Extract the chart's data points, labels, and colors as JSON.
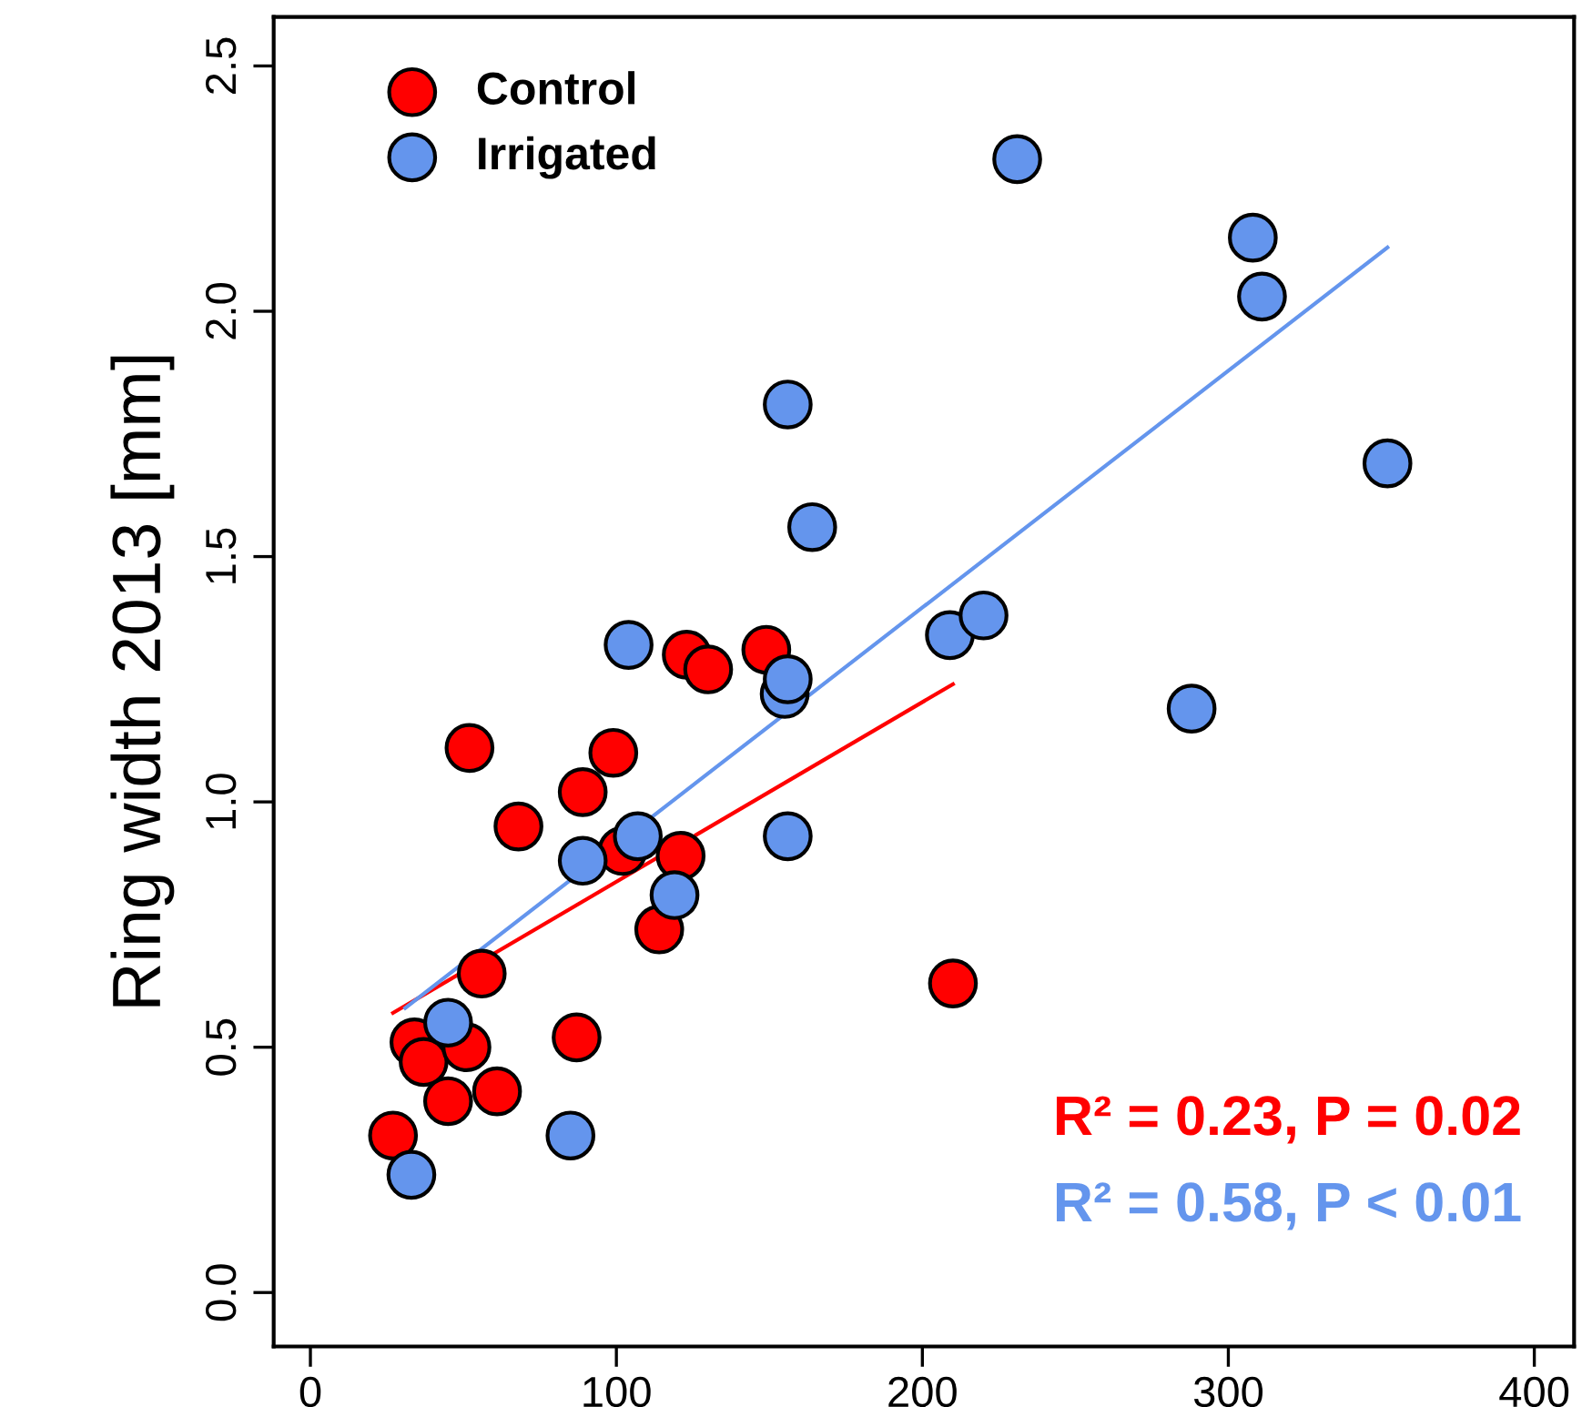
{
  "chart_data": {
    "type": "scatter",
    "ylabel": "Ring width 2013 [mm]",
    "xlim": [
      -12,
      413
    ],
    "ylim": [
      -0.11,
      2.6
    ],
    "xticks": [
      0,
      100,
      200,
      300,
      400
    ],
    "yticks": [
      {
        "value": 0,
        "label": "0.0"
      },
      0.5,
      {
        "value": 1,
        "label": "1.0"
      },
      1.5,
      {
        "value": 2,
        "label": "2.0"
      },
      2.5
    ],
    "grid": false,
    "legend": "top left",
    "series": [
      {
        "name": "Control",
        "color": "#ff0000",
        "marker": "circle",
        "x": [
          27,
          34,
          37,
          45,
          51,
          52,
          56,
          61,
          68,
          87,
          89,
          99,
          102,
          114,
          121,
          123,
          130,
          149,
          210
        ],
        "values": [
          0.32,
          0.51,
          0.47,
          0.39,
          0.5,
          1.11,
          0.65,
          0.41,
          0.95,
          0.52,
          1.02,
          1.1,
          0.9,
          0.74,
          0.89,
          1.3,
          1.27,
          1.31,
          0.63
        ]
      },
      {
        "name": "Irrigated",
        "color": "#6495ed",
        "marker": "circle",
        "x": [
          33,
          45,
          85,
          89,
          104,
          107,
          119,
          155,
          156,
          156,
          156,
          164,
          209,
          220,
          231,
          288,
          308,
          311,
          352
        ],
        "values": [
          0.24,
          0.55,
          0.32,
          0.88,
          1.32,
          0.93,
          0.81,
          1.22,
          1.25,
          0.93,
          1.81,
          1.56,
          1.34,
          1.38,
          2.31,
          1.19,
          2.15,
          2.03,
          1.69
        ]
      },
      {
        "type": "line",
        "marker": "none",
        "color": "#ff0000",
        "x": [
          27,
          210
        ],
        "values": [
          0.57,
          1.24
        ]
      },
      {
        "type": "line",
        "marker": "none",
        "color": "#6495ed",
        "x": [
          31,
          352
        ],
        "values": [
          0.58,
          2.13
        ]
      }
    ],
    "annotations": [
      "R² = 0.23, P = 0.02",
      "R² = 0.58, P < 0.01"
    ]
  }
}
